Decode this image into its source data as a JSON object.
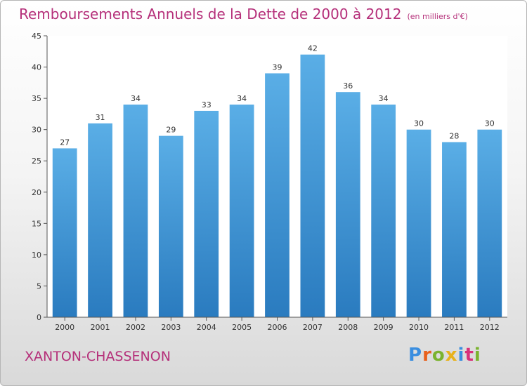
{
  "header": {
    "title": "Remboursements Annuels de la Dette de 2000 à 2012",
    "unit": "(en milliers d'€)"
  },
  "footer": {
    "commune": "XANTON-CHASSENON",
    "logo_text": "Proxiti"
  },
  "colors": {
    "accent": "#b5307a",
    "bar_top": "#5aaee6",
    "bar_bottom": "#2a7bbf"
  },
  "chart_data": {
    "type": "bar",
    "title": "Remboursements Annuels de la Dette de 2000 à 2012",
    "subtitle": "(en milliers d'€)",
    "categories": [
      "2000",
      "2001",
      "2002",
      "2003",
      "2004",
      "2005",
      "2006",
      "2007",
      "2008",
      "2009",
      "2010",
      "2011",
      "2012"
    ],
    "values": [
      27,
      31,
      34,
      29,
      33,
      34,
      39,
      42,
      36,
      34,
      30,
      28,
      30
    ],
    "ylim": [
      0,
      45
    ],
    "yticks": [
      0,
      5,
      10,
      15,
      20,
      25,
      30,
      35,
      40,
      45
    ],
    "grid": false,
    "data_labels": true
  }
}
